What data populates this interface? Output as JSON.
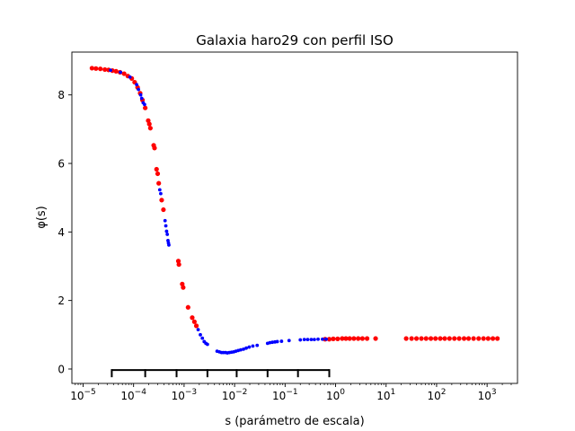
{
  "chart_data": {
    "type": "scatter",
    "title": "Galaxia haro29 con perfil ISO",
    "xlabel": "s (parámetro de escala)",
    "ylabel": "φ(s)",
    "xscale": "log",
    "xlim": [
      6e-06,
      4000
    ],
    "ylim": [
      -0.42,
      9.25
    ],
    "grid": false,
    "x_ticks": [
      {
        "value": 1e-05,
        "base": "10",
        "exp": "−5"
      },
      {
        "value": 0.0001,
        "base": "10",
        "exp": "−4"
      },
      {
        "value": 0.001,
        "base": "10",
        "exp": "−3"
      },
      {
        "value": 0.01,
        "base": "10",
        "exp": "−2"
      },
      {
        "value": 0.1,
        "base": "10",
        "exp": "−1"
      },
      {
        "value": 1,
        "base": "10",
        "exp": "0"
      },
      {
        "value": 10,
        "base": "10",
        "exp": "1"
      },
      {
        "value": 100,
        "base": "10",
        "exp": "2"
      },
      {
        "value": 1000,
        "base": "10",
        "exp": "3"
      }
    ],
    "y_ticks": [
      0,
      2,
      4,
      6,
      8
    ],
    "colors": {
      "red": "#ff0000",
      "blue": "#0000ff",
      "axis": "#000000"
    },
    "series": [
      {
        "color": "red",
        "marker_size": "large",
        "points": [
          [
            1.5e-05,
            8.78
          ],
          [
            1.8e-05,
            8.77
          ],
          [
            2.2e-05,
            8.76
          ],
          [
            2.7e-05,
            8.74
          ],
          [
            3.2e-05,
            8.73
          ],
          [
            3.8e-05,
            8.71
          ],
          [
            4.5e-05,
            8.69
          ],
          [
            5.4e-05,
            8.66
          ],
          [
            6.5e-05,
            8.62
          ],
          [
            7.7e-05,
            8.55
          ],
          [
            9.2e-05,
            8.48
          ],
          [
            0.000105,
            8.37
          ],
          [
            0.00012,
            8.22
          ],
          [
            0.000135,
            8.05
          ],
          [
            0.00015,
            7.85
          ],
          [
            0.00017,
            7.62
          ],
          [
            0.000195,
            7.25
          ],
          [
            0.000205,
            7.15
          ],
          [
            0.000215,
            7.03
          ],
          [
            0.00025,
            6.53
          ],
          [
            0.00026,
            6.45
          ],
          [
            0.000285,
            5.83
          ],
          [
            0.0003,
            5.7
          ],
          [
            0.000315,
            5.42
          ],
          [
            0.00036,
            4.93
          ],
          [
            0.00039,
            4.65
          ],
          [
            0.00077,
            3.15
          ],
          [
            0.00079,
            3.05
          ],
          [
            0.00092,
            2.48
          ],
          [
            0.00096,
            2.38
          ],
          [
            0.0012,
            1.8
          ],
          [
            0.00145,
            1.5
          ],
          [
            0.0016,
            1.38
          ],
          [
            0.00175,
            1.26
          ],
          [
            0.62,
            0.87
          ],
          [
            0.75,
            0.87
          ],
          [
            0.9,
            0.88
          ],
          [
            1.1,
            0.88
          ],
          [
            1.35,
            0.89
          ],
          [
            1.6,
            0.89
          ],
          [
            1.9,
            0.89
          ],
          [
            2.3,
            0.89
          ],
          [
            2.8,
            0.89
          ],
          [
            3.4,
            0.89
          ],
          [
            4.2,
            0.89
          ],
          [
            6.2,
            0.89
          ],
          [
            25,
            0.89
          ],
          [
            32,
            0.89
          ],
          [
            40,
            0.89
          ],
          [
            50,
            0.89
          ],
          [
            62,
            0.89
          ],
          [
            77,
            0.89
          ],
          [
            95,
            0.89
          ],
          [
            118,
            0.89
          ],
          [
            145,
            0.89
          ],
          [
            180,
            0.89
          ],
          [
            225,
            0.89
          ],
          [
            280,
            0.89
          ],
          [
            350,
            0.89
          ],
          [
            430,
            0.89
          ],
          [
            540,
            0.89
          ],
          [
            680,
            0.89
          ],
          [
            850,
            0.89
          ],
          [
            1050,
            0.89
          ],
          [
            1300,
            0.89
          ],
          [
            1600,
            0.89
          ]
        ]
      },
      {
        "color": "blue",
        "marker_size": "small",
        "points": [
          [
            3.5e-05,
            8.72
          ],
          [
            5.5e-05,
            8.66
          ],
          [
            8.5e-05,
            8.52
          ],
          [
            0.000115,
            8.3
          ],
          [
            0.000125,
            8.16
          ],
          [
            0.000138,
            8.0
          ],
          [
            0.000145,
            7.9
          ],
          [
            0.000155,
            7.77
          ],
          [
            0.000165,
            7.72
          ],
          [
            0.00033,
            5.23
          ],
          [
            0.000345,
            5.12
          ],
          [
            0.00042,
            4.33
          ],
          [
            0.000435,
            4.18
          ],
          [
            0.00045,
            4.02
          ],
          [
            0.000465,
            3.93
          ],
          [
            0.00048,
            3.75
          ],
          [
            0.00049,
            3.68
          ],
          [
            0.0005,
            3.62
          ],
          [
            0.0019,
            1.15
          ],
          [
            0.0021,
            1.0
          ],
          [
            0.0023,
            0.9
          ],
          [
            0.0025,
            0.8
          ],
          [
            0.0027,
            0.75
          ],
          [
            0.0029,
            0.72
          ],
          [
            0.0045,
            0.52
          ],
          [
            0.005,
            0.5
          ],
          [
            0.0055,
            0.48
          ],
          [
            0.006,
            0.48
          ],
          [
            0.0066,
            0.48
          ],
          [
            0.0072,
            0.47
          ],
          [
            0.0079,
            0.48
          ],
          [
            0.0087,
            0.49
          ],
          [
            0.0096,
            0.5
          ],
          [
            0.0106,
            0.52
          ],
          [
            0.0118,
            0.54
          ],
          [
            0.0132,
            0.56
          ],
          [
            0.015,
            0.58
          ],
          [
            0.017,
            0.61
          ],
          [
            0.0195,
            0.64
          ],
          [
            0.023,
            0.67
          ],
          [
            0.028,
            0.69
          ],
          [
            0.045,
            0.75
          ],
          [
            0.05,
            0.77
          ],
          [
            0.056,
            0.78
          ],
          [
            0.063,
            0.79
          ],
          [
            0.07,
            0.8
          ],
          [
            0.085,
            0.81
          ],
          [
            0.12,
            0.83
          ],
          [
            0.2,
            0.85
          ],
          [
            0.24,
            0.86
          ],
          [
            0.28,
            0.86
          ],
          [
            0.33,
            0.86
          ],
          [
            0.38,
            0.86
          ],
          [
            0.45,
            0.87
          ],
          [
            0.55,
            0.87
          ],
          [
            0.65,
            0.87
          ]
        ]
      }
    ],
    "annotation_bar": {
      "y": -0.03,
      "x_start": 3.7e-05,
      "x_end": 0.75,
      "ticks": [
        3.7e-05,
        0.00017,
        0.00071,
        0.0029,
        0.011,
        0.045,
        0.18,
        0.75
      ]
    }
  }
}
